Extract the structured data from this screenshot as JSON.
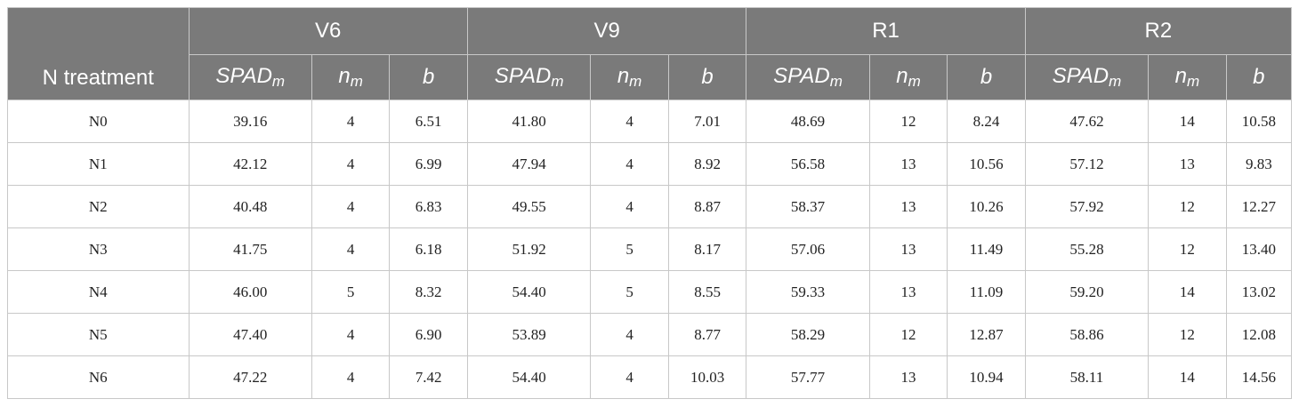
{
  "table": {
    "first_col_header": "N treatment",
    "stages": [
      "V6",
      "V9",
      "R1",
      "R2"
    ],
    "param_headers": [
      {
        "main": "SPAD",
        "sub": "m"
      },
      {
        "main": "n",
        "sub": "m"
      },
      {
        "main": "b",
        "sub": ""
      }
    ],
    "rows": [
      {
        "treatment": "N0",
        "values": [
          "39.16",
          "4",
          "6.51",
          "41.80",
          "4",
          "7.01",
          "48.69",
          "12",
          "8.24",
          "47.62",
          "14",
          "10.58"
        ]
      },
      {
        "treatment": "N1",
        "values": [
          "42.12",
          "4",
          "6.99",
          "47.94",
          "4",
          "8.92",
          "56.58",
          "13",
          "10.56",
          "57.12",
          "13",
          "9.83"
        ]
      },
      {
        "treatment": "N2",
        "values": [
          "40.48",
          "4",
          "6.83",
          "49.55",
          "4",
          "8.87",
          "58.37",
          "13",
          "10.26",
          "57.92",
          "12",
          "12.27"
        ]
      },
      {
        "treatment": "N3",
        "values": [
          "41.75",
          "4",
          "6.18",
          "51.92",
          "5",
          "8.17",
          "57.06",
          "13",
          "11.49",
          "55.28",
          "12",
          "13.40"
        ]
      },
      {
        "treatment": "N4",
        "values": [
          "46.00",
          "5",
          "8.32",
          "54.40",
          "5",
          "8.55",
          "59.33",
          "13",
          "11.09",
          "59.20",
          "14",
          "13.02"
        ]
      },
      {
        "treatment": "N5",
        "values": [
          "47.40",
          "4",
          "6.90",
          "53.89",
          "4",
          "8.77",
          "58.29",
          "12",
          "12.87",
          "58.86",
          "12",
          "12.08"
        ]
      },
      {
        "treatment": "N6",
        "values": [
          "47.22",
          "4",
          "7.42",
          "54.40",
          "4",
          "10.03",
          "57.77",
          "13",
          "10.94",
          "58.11",
          "14",
          "14.56"
        ]
      }
    ]
  }
}
